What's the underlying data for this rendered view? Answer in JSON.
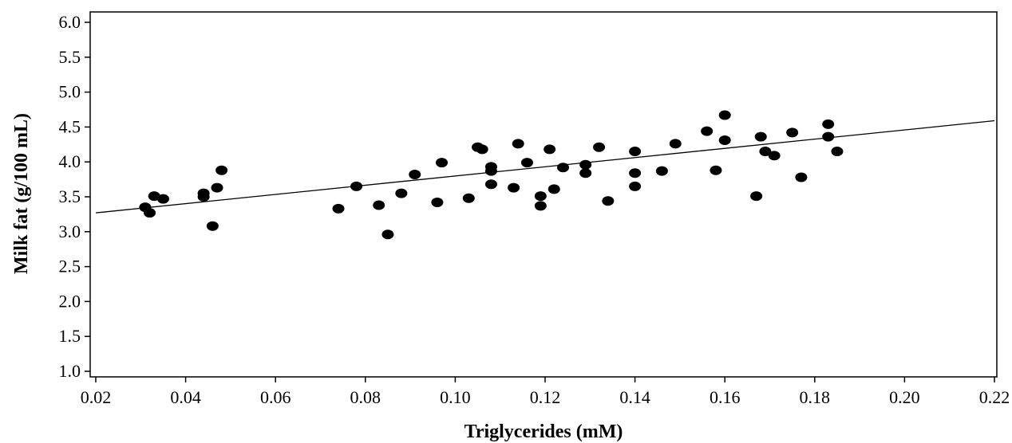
{
  "chart_data": {
    "type": "scatter",
    "title": "",
    "xlabel": "Triglycerides (mM)",
    "ylabel": "Milk fat (g/100 mL)",
    "xlim": [
      0.02,
      0.22
    ],
    "ylim": [
      1.0,
      6.0
    ],
    "x_ticks": [
      "0.02",
      "0.04",
      "0.06",
      "0.08",
      "0.10",
      "0.12",
      "0.14",
      "0.16",
      "0.18",
      "0.20",
      "0.22"
    ],
    "y_ticks": [
      "1.0",
      "1.5",
      "2.0",
      "2.5",
      "3.0",
      "3.5",
      "4.0",
      "4.5",
      "5.0",
      "5.5",
      "6.0"
    ],
    "grid": false,
    "legend": "none",
    "point_color": "#000000",
    "points": [
      [
        0.031,
        3.35
      ],
      [
        0.032,
        3.27
      ],
      [
        0.033,
        3.51
      ],
      [
        0.035,
        3.47
      ],
      [
        0.044,
        3.55
      ],
      [
        0.044,
        3.5
      ],
      [
        0.046,
        3.08
      ],
      [
        0.047,
        3.63
      ],
      [
        0.048,
        3.88
      ],
      [
        0.074,
        3.33
      ],
      [
        0.078,
        3.65
      ],
      [
        0.083,
        3.38
      ],
      [
        0.085,
        2.96
      ],
      [
        0.088,
        3.55
      ],
      [
        0.091,
        3.82
      ],
      [
        0.096,
        3.42
      ],
      [
        0.097,
        3.99
      ],
      [
        0.103,
        3.48
      ],
      [
        0.105,
        4.21
      ],
      [
        0.106,
        4.18
      ],
      [
        0.108,
        3.93
      ],
      [
        0.108,
        3.87
      ],
      [
        0.108,
        3.68
      ],
      [
        0.113,
        3.63
      ],
      [
        0.114,
        4.26
      ],
      [
        0.116,
        3.99
      ],
      [
        0.119,
        3.51
      ],
      [
        0.119,
        3.37
      ],
      [
        0.121,
        4.18
      ],
      [
        0.122,
        3.61
      ],
      [
        0.124,
        3.92
      ],
      [
        0.129,
        3.96
      ],
      [
        0.129,
        3.84
      ],
      [
        0.132,
        4.21
      ],
      [
        0.134,
        3.44
      ],
      [
        0.14,
        4.15
      ],
      [
        0.14,
        3.84
      ],
      [
        0.14,
        3.65
      ],
      [
        0.146,
        3.87
      ],
      [
        0.149,
        4.26
      ],
      [
        0.156,
        4.44
      ],
      [
        0.158,
        3.88
      ],
      [
        0.16,
        4.31
      ],
      [
        0.16,
        4.67
      ],
      [
        0.167,
        3.51
      ],
      [
        0.168,
        4.36
      ],
      [
        0.169,
        4.15
      ],
      [
        0.171,
        4.09
      ],
      [
        0.175,
        4.42
      ],
      [
        0.177,
        3.78
      ],
      [
        0.183,
        4.54
      ],
      [
        0.183,
        4.36
      ],
      [
        0.185,
        4.15
      ]
    ],
    "regression_line": {
      "x": [
        0.02,
        0.22
      ],
      "y": [
        3.27,
        4.59
      ]
    }
  }
}
